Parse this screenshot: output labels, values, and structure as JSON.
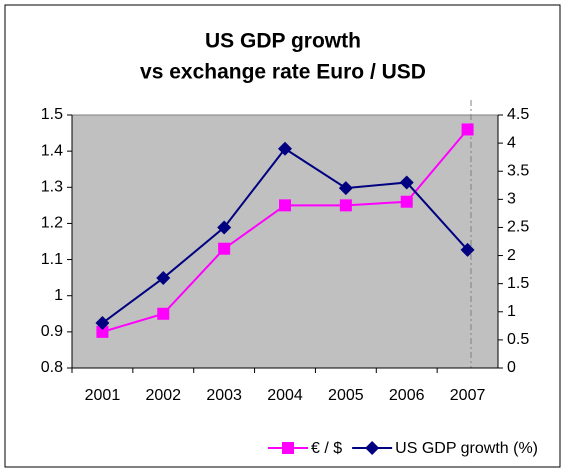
{
  "chart_data": {
    "type": "line",
    "title": [
      "US GDP growth",
      "vs exchange rate Euro / USD"
    ],
    "categories": [
      "2001",
      "2002",
      "2003",
      "2004",
      "2005",
      "2006",
      "2007"
    ],
    "series": [
      {
        "name": "€ / $",
        "color": "#ff00ff",
        "marker": "square",
        "values": [
          0.9,
          0.95,
          1.13,
          1.25,
          1.25,
          1.26,
          1.46
        ]
      },
      {
        "name": "US GDP growth (%)",
        "color": "#000080",
        "marker": "diamond",
        "axis": "y2",
        "values": [
          0.8,
          1.6,
          2.5,
          3.9,
          3.2,
          3.3,
          2.1
        ]
      }
    ],
    "ylim": [
      0.8,
      1.5
    ],
    "yticks": [
      0.8,
      0.9,
      1,
      1.1,
      1.2,
      1.3,
      1.4,
      1.5
    ],
    "y2lim": [
      0,
      4.5
    ],
    "y2ticks": [
      0,
      0.5,
      1,
      1.5,
      2,
      2.5,
      3,
      3.5,
      4,
      4.5
    ],
    "plot_background": "#c0c0c0",
    "legend": "bottom right"
  }
}
